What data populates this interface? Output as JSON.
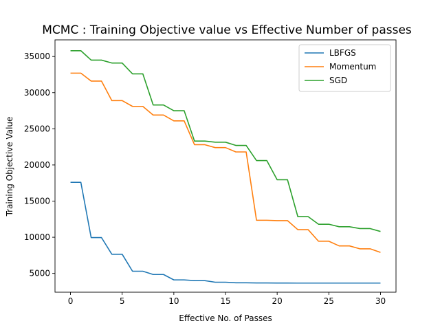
{
  "chart_data": {
    "type": "line",
    "title": "MCMC : Training Objective value vs Effective Number of passes",
    "xlabel": "Effective No. of Passes",
    "ylabel": "Training Objective Value",
    "xlim": [
      -1.5,
      31.5
    ],
    "ylim": [
      2400,
      37300
    ],
    "xticks": [
      0,
      5,
      10,
      15,
      20,
      25,
      30
    ],
    "yticks": [
      5000,
      10000,
      15000,
      20000,
      25000,
      30000,
      35000
    ],
    "grid": false,
    "legend_position": "top-right",
    "x": [
      0,
      1,
      2,
      3,
      4,
      5,
      6,
      7,
      8,
      9,
      10,
      11,
      12,
      13,
      14,
      15,
      16,
      17,
      18,
      19,
      20,
      21,
      22,
      23,
      24,
      25,
      26,
      27,
      28,
      29,
      30
    ],
    "series": [
      {
        "name": "LBFGS",
        "color": "#1f77b4",
        "values": [
          17600,
          17600,
          9950,
          9950,
          7650,
          7650,
          5300,
          5300,
          4850,
          4850,
          4100,
          4100,
          4000,
          4000,
          3780,
          3780,
          3700,
          3700,
          3680,
          3680,
          3670,
          3670,
          3660,
          3660,
          3660,
          3660,
          3660,
          3660,
          3660,
          3660,
          3660
        ]
      },
      {
        "name": "Momentum",
        "color": "#ff7f0e",
        "values": [
          32700,
          32700,
          31600,
          31600,
          28900,
          28900,
          28100,
          28100,
          26900,
          26900,
          26100,
          26100,
          22800,
          22800,
          22400,
          22400,
          21800,
          21800,
          12350,
          12350,
          12300,
          12300,
          11050,
          11050,
          9450,
          9450,
          8800,
          8800,
          8400,
          8400,
          7900
        ]
      },
      {
        "name": "SGD",
        "color": "#2ca02c",
        "values": [
          35800,
          35800,
          34500,
          34500,
          34100,
          34100,
          32600,
          32600,
          28300,
          28300,
          27500,
          27500,
          23300,
          23300,
          23150,
          23150,
          22700,
          22700,
          20600,
          20600,
          17950,
          17950,
          12850,
          12850,
          11800,
          11800,
          11450,
          11450,
          11200,
          11200,
          10800
        ]
      }
    ]
  }
}
